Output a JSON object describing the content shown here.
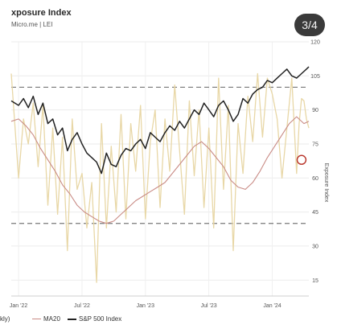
{
  "header": {
    "title": "xposure Index",
    "subtitle": "Micro.me | LEI"
  },
  "counter": {
    "label": "3/4"
  },
  "legend": {
    "fragment": "kly)",
    "ma20_label": "MA20",
    "sp500_label": "S&P 500 Index"
  },
  "chart_data": {
    "type": "line",
    "x_tick_labels": [
      "Jan '22",
      "Jul '22",
      "Jan '23",
      "Jul '23",
      "Jan '24"
    ],
    "x_ticks": [
      0,
      26,
      52,
      78,
      104
    ],
    "y_axis_right": {
      "label": "Exposure Index",
      "ticks": [
        15,
        30,
        45,
        60,
        75,
        90,
        105,
        120
      ],
      "ylim": [
        8,
        120
      ]
    },
    "reference_lines": [
      100,
      40
    ],
    "grid": true,
    "legend_placement": "bottom",
    "colors": {
      "exposure": "#e8d7a6",
      "ma20": "#c98b85",
      "sp500": "#222222",
      "reference": "#777777",
      "marker": "#b83228"
    },
    "marker": {
      "x": 116,
      "y": 68
    },
    "series": [
      {
        "name": "",
        "x": [
          -3,
          0,
          2,
          4,
          6,
          8,
          10,
          12,
          14,
          16,
          18,
          20,
          22,
          24,
          26,
          28,
          30,
          32,
          34,
          36,
          38,
          40,
          42,
          44,
          46,
          48,
          50,
          52,
          54,
          56,
          58,
          60,
          62,
          64,
          66,
          68,
          70,
          72,
          74,
          76,
          78,
          80,
          82,
          84,
          86,
          88,
          90,
          92,
          94,
          96,
          98,
          100,
          102,
          104,
          106,
          108,
          110,
          112,
          114,
          115,
          116,
          117,
          118,
          119
        ],
        "y": [
          106,
          60,
          86,
          75,
          93,
          65,
          92,
          48,
          82,
          44,
          78,
          28,
          86,
          55,
          62,
          38,
          58,
          14,
          84,
          38,
          74,
          45,
          88,
          42,
          84,
          63,
          92,
          42,
          76,
          90,
          47,
          86,
          63,
          101,
          72,
          44,
          94,
          61,
          90,
          47,
          82,
          38,
          104,
          55,
          92,
          28,
          84,
          62,
          96,
          76,
          106,
          78,
          104,
          97,
          86,
          60,
          82,
          104,
          62,
          84,
          95,
          94,
          86,
          82
        ]
      },
      {
        "name": "MA20",
        "x": [
          -3,
          0,
          3,
          6,
          9,
          12,
          15,
          18,
          21,
          24,
          27,
          30,
          33,
          36,
          39,
          42,
          45,
          48,
          51,
          54,
          57,
          60,
          63,
          66,
          69,
          72,
          75,
          78,
          81,
          84,
          87,
          90,
          93,
          96,
          99,
          102,
          105,
          108,
          111,
          114,
          117,
          119
        ],
        "y": [
          85,
          86,
          83,
          79,
          73,
          68,
          63,
          57,
          53,
          48,
          45,
          43,
          41,
          40,
          41,
          44,
          47,
          50,
          52,
          54,
          56,
          58,
          62,
          66,
          70,
          74,
          76,
          73,
          69,
          65,
          59,
          56,
          55,
          58,
          63,
          69,
          74,
          79,
          84,
          87,
          84,
          85
        ]
      },
      {
        "name": "S&P 500 Index",
        "x": [
          -3,
          0,
          2,
          4,
          6,
          8,
          10,
          12,
          14,
          16,
          18,
          20,
          22,
          24,
          26,
          28,
          30,
          32,
          34,
          36,
          38,
          40,
          42,
          44,
          46,
          48,
          50,
          52,
          54,
          56,
          58,
          60,
          62,
          64,
          66,
          68,
          70,
          72,
          74,
          76,
          78,
          80,
          82,
          84,
          86,
          88,
          90,
          92,
          94,
          96,
          98,
          100,
          102,
          104,
          106,
          108,
          110,
          112,
          114,
          116,
          118,
          119
        ],
        "y": [
          94,
          92,
          95,
          91,
          96,
          88,
          93,
          84,
          86,
          79,
          82,
          72,
          77,
          80,
          75,
          71,
          69,
          67,
          62,
          71,
          66,
          65,
          70,
          73,
          72,
          75,
          77,
          73,
          80,
          78,
          76,
          80,
          83,
          81,
          85,
          82,
          86,
          90,
          88,
          93,
          90,
          87,
          92,
          94,
          90,
          85,
          88,
          95,
          93,
          97,
          99,
          100,
          103,
          102,
          104,
          106,
          108,
          105,
          104,
          106,
          108,
          109
        ]
      }
    ]
  }
}
